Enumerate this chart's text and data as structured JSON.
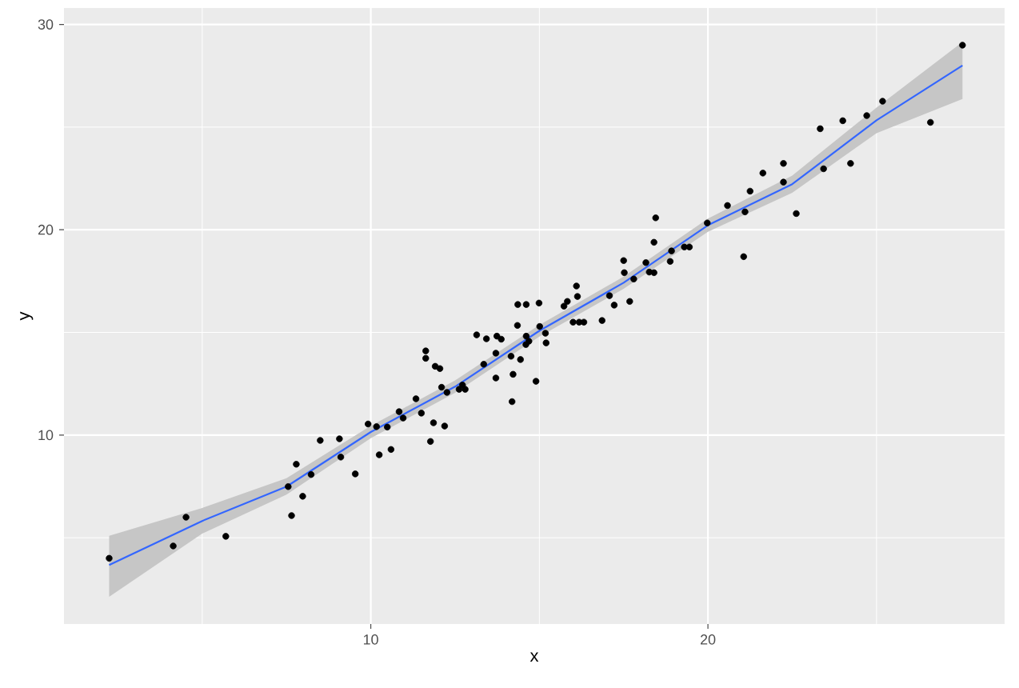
{
  "chart_data": {
    "type": "scatter",
    "xlabel": "x",
    "ylabel": "y",
    "xlim": [
      0.9,
      28.8
    ],
    "ylim": [
      0.8,
      30.8
    ],
    "xticks": [
      10,
      20
    ],
    "yticks": [
      10,
      20,
      30
    ],
    "grid": true,
    "series": [
      {
        "type": "scatter",
        "marker": "circle",
        "color": "#000000",
        "x": [
          2.24,
          4.14,
          4.52,
          5.7,
          7.65,
          7.55,
          7.98,
          7.79,
          8.23,
          8.5,
          9.07,
          9.11,
          9.54,
          9.92,
          10.17,
          10.49,
          10.25,
          10.6,
          10.84,
          10.96,
          11.34,
          11.5,
          11.77,
          11.86,
          12.19,
          11.63,
          11.63,
          11.91,
          12.05,
          12.1,
          12.26,
          12.62,
          12.8,
          12.72,
          13.14,
          13.43,
          13.35,
          13.74,
          13.87,
          13.71,
          13.71,
          14.16,
          14.44,
          14.22,
          14.19,
          14.36,
          14.61,
          14.99,
          14.35,
          14.61,
          14.69,
          14.6,
          14.9,
          15.01,
          15.18,
          15.2,
          15.73,
          15.83,
          16.1,
          16.13,
          16.0,
          16.18,
          16.32,
          16.86,
          17.08,
          17.22,
          17.5,
          17.52,
          17.68,
          17.8,
          18.45,
          18.4,
          18.16,
          18.26,
          18.4,
          18.88,
          18.92,
          19.3,
          19.45,
          19.98,
          20.58,
          21.1,
          21.06,
          21.25,
          21.63,
          22.24,
          22.24,
          22.62,
          23.33,
          23.43,
          24.0,
          24.23,
          24.71,
          25.18,
          26.6,
          27.55
        ],
        "values": [
          4.0,
          4.6,
          6.0,
          5.07,
          6.08,
          7.49,
          7.02,
          8.58,
          8.08,
          9.74,
          9.82,
          8.93,
          8.11,
          10.54,
          10.41,
          10.39,
          9.04,
          9.3,
          11.14,
          10.83,
          11.77,
          11.07,
          9.69,
          10.6,
          10.44,
          14.1,
          13.74,
          13.35,
          13.24,
          12.33,
          12.08,
          12.23,
          12.23,
          12.44,
          14.88,
          14.69,
          13.45,
          14.82,
          14.67,
          12.78,
          13.99,
          13.84,
          13.68,
          12.96,
          11.63,
          16.36,
          16.36,
          16.43,
          15.34,
          14.82,
          14.57,
          14.41,
          12.62,
          15.29,
          14.96,
          14.49,
          16.28,
          16.51,
          17.26,
          16.75,
          15.5,
          15.5,
          15.5,
          15.58,
          16.79,
          16.33,
          18.5,
          17.91,
          16.51,
          17.6,
          20.58,
          19.39,
          18.4,
          17.94,
          17.91,
          18.46,
          18.97,
          19.16,
          19.16,
          20.33,
          21.18,
          20.87,
          18.69,
          21.88,
          22.76,
          23.23,
          22.32,
          20.79,
          24.92,
          22.97,
          25.31,
          23.23,
          25.56,
          26.26,
          25.23,
          28.99
        ]
      },
      {
        "type": "line",
        "marker": "none",
        "color": "#3366ff",
        "x": [
          2.24,
          5,
          7.5,
          10,
          12.5,
          15,
          17.5,
          20,
          22.5,
          25,
          27.55
        ],
        "values": [
          3.67,
          5.82,
          7.49,
          10.15,
          12.36,
          15.08,
          17.42,
          20.22,
          22.22,
          25.33,
          28.0
        ],
        "lower": [
          2.12,
          5.2,
          7.1,
          9.85,
          12.06,
          14.8,
          17.12,
          19.9,
          21.8,
          24.7,
          26.37
        ],
        "upper": [
          5.1,
          6.45,
          7.9,
          10.45,
          12.66,
          15.36,
          17.72,
          20.54,
          22.64,
          25.95,
          29.14
        ]
      }
    ]
  }
}
